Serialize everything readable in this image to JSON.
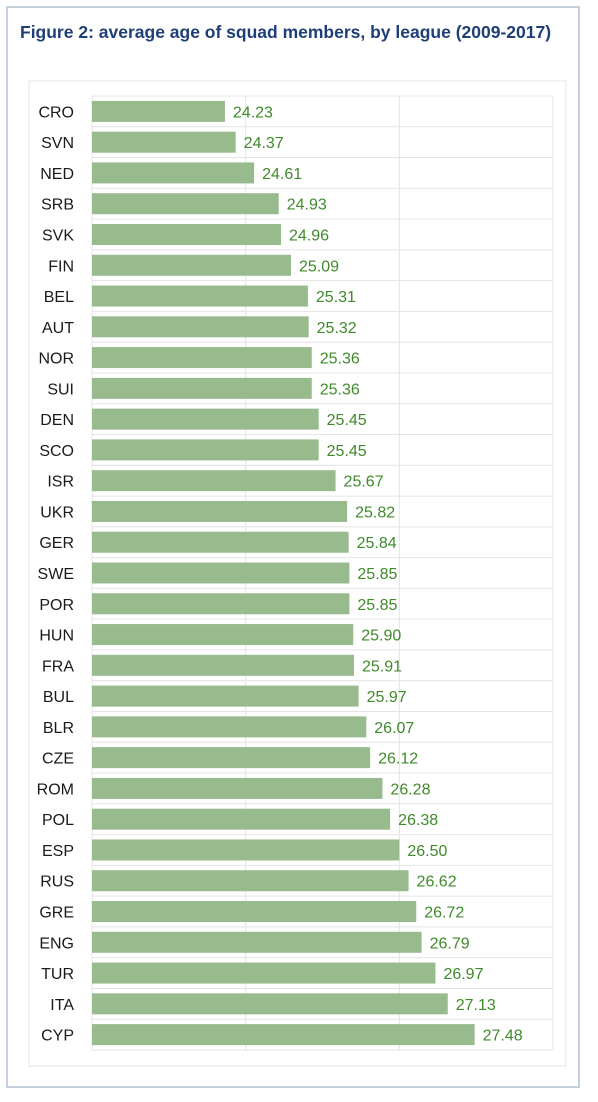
{
  "title": "Figure 2: average age of squad members, by league (2009-2017)",
  "colors": {
    "bar": "#97bb8d",
    "value_text": "#3f8a2a",
    "grid": "#e4e4e4",
    "border": "#c5d0dc",
    "title": "#1f3f78"
  },
  "chart_data": {
    "type": "bar",
    "orientation": "horizontal",
    "title": "Figure 2: average age of squad members, by league (2009-2017)",
    "xlabel": "",
    "ylabel": "",
    "xlim": [
      22.5,
      28.5
    ],
    "grid": true,
    "legend": "none",
    "categories": [
      "CRO",
      "SVN",
      "NED",
      "SRB",
      "SVK",
      "FIN",
      "BEL",
      "AUT",
      "NOR",
      "SUI",
      "DEN",
      "SCO",
      "ISR",
      "UKR",
      "GER",
      "SWE",
      "POR",
      "HUN",
      "FRA",
      "BUL",
      "BLR",
      "CZE",
      "ROM",
      "POL",
      "ESP",
      "RUS",
      "GRE",
      "ENG",
      "TUR",
      "ITA",
      "CYP"
    ],
    "values": [
      24.23,
      24.37,
      24.61,
      24.93,
      24.96,
      25.09,
      25.31,
      25.32,
      25.36,
      25.36,
      25.45,
      25.45,
      25.67,
      25.82,
      25.84,
      25.85,
      25.85,
      25.9,
      25.91,
      25.97,
      26.07,
      26.12,
      26.28,
      26.38,
      26.5,
      26.62,
      26.72,
      26.79,
      26.97,
      27.13,
      27.48
    ],
    "value_labels": [
      "24.23",
      "24.37",
      "24.61",
      "24.93",
      "24.96",
      "25.09",
      "25.31",
      "25.32",
      "25.36",
      "25.36",
      "25.45",
      "25.45",
      "25.67",
      "25.82",
      "25.84",
      "25.85",
      "25.85",
      "25.90",
      "25.91",
      "25.97",
      "26.07",
      "26.12",
      "26.28",
      "26.38",
      "26.50",
      "26.62",
      "26.72",
      "26.79",
      "26.97",
      "27.13",
      "27.48"
    ]
  }
}
